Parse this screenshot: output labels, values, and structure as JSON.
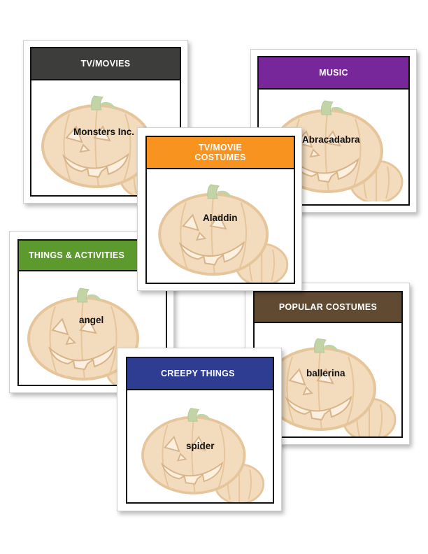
{
  "cards": [
    {
      "id": "tv-movies",
      "header": "TV/MOVIES",
      "color": "#3d3e3c",
      "word": "Monsters Inc."
    },
    {
      "id": "music",
      "header": "MUSIC",
      "color": "#77279a",
      "word": "Abracadabra"
    },
    {
      "id": "things-activities",
      "header": "THINGS & ACTIVITIES",
      "color": "#5d9a2d",
      "word": "angel"
    },
    {
      "id": "popular-costumes",
      "header": "POPULAR COSTUMES",
      "color": "#604a32",
      "word": "ballerina"
    },
    {
      "id": "creepy-things",
      "header": "CREEPY THINGS",
      "color": "#2e3c92",
      "word": "spider"
    },
    {
      "id": "tv-movie-costumes",
      "header": "TV/MOVIE\nCOSTUMES",
      "color": "#f7931e",
      "word": "Aladdin"
    }
  ],
  "pumpkin": {
    "fill": "#f3dcbd",
    "stroke": "#e9c9a0",
    "stem": "#c2d3a6",
    "face": "#fbefe0"
  }
}
